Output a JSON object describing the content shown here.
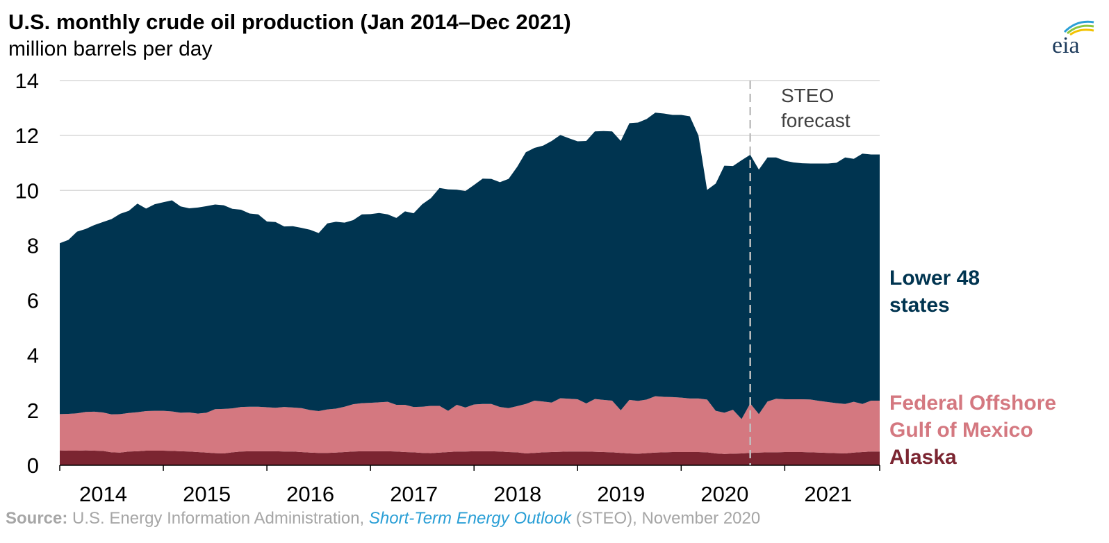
{
  "chart_data": {
    "type": "area",
    "stacked": true,
    "title": "U.S. monthly crude oil production (Jan 2014–Dec 2021)",
    "subtitle": "million barrels per day",
    "ylim": [
      0,
      14
    ],
    "yticks": [
      "0",
      "2",
      "4",
      "6",
      "8",
      "10",
      "12",
      "14"
    ],
    "xticks": [
      "2014",
      "2015",
      "2016",
      "2017",
      "2018",
      "2019",
      "2020",
      "2021"
    ],
    "x_start": "2014-01",
    "x_end": "2021-12",
    "grid": "horizontal",
    "forecast_start": "2020-09",
    "forecast_label": [
      "STEO",
      "forecast"
    ],
    "series": [
      {
        "name": "Alaska",
        "label_lines": [
          "Alaska"
        ],
        "color": "#7b2531",
        "values": [
          0.54,
          0.53,
          0.53,
          0.54,
          0.53,
          0.52,
          0.47,
          0.46,
          0.5,
          0.51,
          0.53,
          0.53,
          0.53,
          0.52,
          0.51,
          0.5,
          0.48,
          0.46,
          0.44,
          0.43,
          0.47,
          0.5,
          0.51,
          0.51,
          0.51,
          0.51,
          0.5,
          0.5,
          0.48,
          0.46,
          0.45,
          0.45,
          0.46,
          0.48,
          0.5,
          0.51,
          0.51,
          0.51,
          0.51,
          0.5,
          0.48,
          0.47,
          0.45,
          0.44,
          0.46,
          0.48,
          0.5,
          0.5,
          0.51,
          0.51,
          0.51,
          0.5,
          0.48,
          0.47,
          0.43,
          0.45,
          0.47,
          0.48,
          0.49,
          0.5,
          0.5,
          0.5,
          0.49,
          0.48,
          0.47,
          0.45,
          0.43,
          0.42,
          0.44,
          0.46,
          0.47,
          0.48,
          0.48,
          0.48,
          0.48,
          0.47,
          0.43,
          0.41,
          0.42,
          0.43,
          0.45,
          0.46,
          0.47,
          0.47,
          0.48,
          0.48,
          0.48,
          0.47,
          0.46,
          0.45,
          0.44,
          0.43,
          0.46,
          0.48,
          0.5,
          0.5
        ]
      },
      {
        "name": "Federal Offshore Gulf of Mexico",
        "label_lines": [
          "Federal Offshore",
          "Gulf of Mexico"
        ],
        "color": "#d47880",
        "values": [
          1.32,
          1.34,
          1.36,
          1.4,
          1.42,
          1.4,
          1.38,
          1.4,
          1.4,
          1.42,
          1.44,
          1.45,
          1.45,
          1.44,
          1.4,
          1.42,
          1.4,
          1.45,
          1.6,
          1.62,
          1.6,
          1.62,
          1.62,
          1.62,
          1.6,
          1.58,
          1.62,
          1.6,
          1.6,
          1.55,
          1.52,
          1.58,
          1.6,
          1.65,
          1.72,
          1.75,
          1.76,
          1.78,
          1.8,
          1.7,
          1.72,
          1.65,
          1.68,
          1.72,
          1.7,
          1.5,
          1.7,
          1.6,
          1.7,
          1.72,
          1.72,
          1.62,
          1.6,
          1.68,
          1.8,
          1.9,
          1.85,
          1.8,
          1.95,
          1.92,
          1.9,
          1.75,
          1.92,
          1.9,
          1.88,
          1.55,
          1.95,
          1.92,
          1.95,
          2.05,
          2.02,
          2.0,
          1.98,
          1.95,
          1.95,
          1.92,
          1.55,
          1.5,
          1.6,
          1.25,
          1.8,
          1.4,
          1.85,
          1.95,
          1.92,
          1.92,
          1.92,
          1.92,
          1.88,
          1.85,
          1.82,
          1.8,
          1.85,
          1.75,
          1.85,
          1.85
        ]
      },
      {
        "name": "Lower 48 states",
        "label_lines": [
          "Lower 48",
          "states"
        ],
        "color": "#003450",
        "values": [
          6.22,
          6.33,
          6.61,
          6.66,
          6.79,
          6.93,
          7.11,
          7.29,
          7.36,
          7.59,
          7.37,
          7.52,
          7.59,
          7.68,
          7.51,
          7.43,
          7.5,
          7.52,
          7.45,
          7.41,
          7.26,
          7.18,
          7.03,
          7.0,
          6.76,
          6.76,
          6.57,
          6.6,
          6.56,
          6.56,
          6.48,
          6.77,
          6.8,
          6.7,
          6.7,
          6.87,
          6.87,
          6.89,
          6.82,
          6.8,
          7.04,
          7.05,
          7.37,
          7.56,
          7.93,
          8.06,
          7.83,
          7.88,
          7.99,
          8.2,
          8.19,
          8.18,
          8.34,
          8.71,
          9.16,
          9.2,
          9.31,
          9.52,
          9.58,
          9.48,
          9.39,
          9.55,
          9.74,
          9.78,
          9.8,
          9.8,
          10.07,
          10.13,
          10.21,
          10.32,
          10.31,
          10.27,
          10.29,
          10.27,
          9.57,
          7.63,
          8.27,
          8.99,
          8.87,
          9.42,
          9.05,
          8.9,
          8.88,
          8.78,
          8.68,
          8.62,
          8.59,
          8.59,
          8.64,
          8.68,
          8.75,
          8.97,
          8.84,
          9.11,
          8.96,
          8.96
        ]
      }
    ]
  },
  "source": {
    "prefix": "Source:",
    "text_before": " U.S. Energy Information Administration, ",
    "link": "Short-Term Energy Outlook",
    "text_after": " (STEO), November 2020"
  },
  "logo": {
    "text": "eia",
    "icon": "eia-logo-icon",
    "colors": [
      "#2a9fd6",
      "#8cc63f",
      "#f2c200"
    ]
  }
}
